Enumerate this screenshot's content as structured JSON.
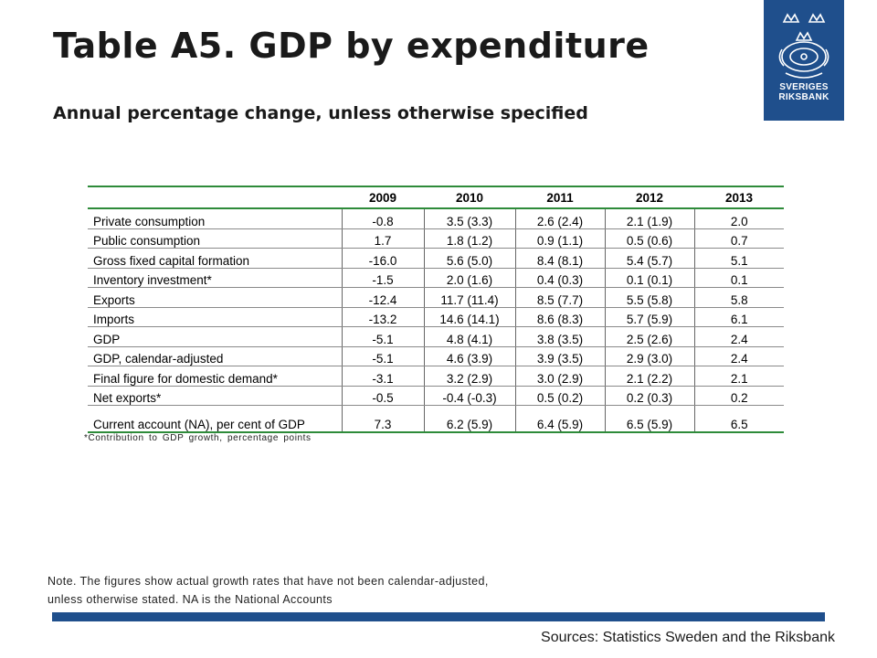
{
  "title": "Table A5. GDP by expenditure",
  "subtitle": "Annual percentage change, unless otherwise specified",
  "logo": {
    "line1": "SVERIGES",
    "line2": "RIKSBANK",
    "color": "#1f4f8c"
  },
  "table": {
    "columns": [
      "2009",
      "2010",
      "2011",
      "2012",
      "2013"
    ],
    "rows": [
      {
        "label": "Private consumption",
        "values": [
          "-0.8",
          "3.5 (3.3)",
          "2.6 (2.4)",
          "2.1 (1.9)",
          "2.0"
        ]
      },
      {
        "label": "Public consumption",
        "values": [
          "1.7",
          "1.8 (1.2)",
          "0.9 (1.1)",
          "0.5 (0.6)",
          "0.7"
        ]
      },
      {
        "label": "Gross fixed capital formation",
        "values": [
          "-16.0",
          "5.6 (5.0)",
          "8.4 (8.1)",
          "5.4 (5.7)",
          "5.1"
        ]
      },
      {
        "label": "Inventory investment*",
        "values": [
          "-1.5",
          "2.0 (1.6)",
          "0.4 (0.3)",
          "0.1 (0.1)",
          "0.1"
        ]
      },
      {
        "label": "Exports",
        "values": [
          "-12.4",
          "11.7 (11.4)",
          "8.5 (7.7)",
          "5.5 (5.8)",
          "5.8"
        ]
      },
      {
        "label": "Imports",
        "values": [
          "-13.2",
          "14.6 (14.1)",
          "8.6 (8.3)",
          "5.7 (5.9)",
          "6.1"
        ]
      },
      {
        "label": "GDP",
        "values": [
          "-5.1",
          "4.8 (4.1)",
          "3.8 (3.5)",
          "2.5 (2.6)",
          "2.4"
        ]
      },
      {
        "label": "GDP, calendar-adjusted",
        "values": [
          "-5.1",
          "4.6 (3.9)",
          "3.9 (3.5)",
          "2.9 (3.0)",
          "2.4"
        ]
      },
      {
        "label": "Final figure for domestic demand*",
        "values": [
          "-3.1",
          "3.2 (2.9)",
          "3.0 (2.9)",
          "2.1 (2.2)",
          "2.1"
        ]
      },
      {
        "label": "Net exports*",
        "values": [
          "-0.5",
          "-0.4 (-0.3)",
          "0.5 (0.2)",
          "0.2 (0.3)",
          "0.2"
        ]
      },
      {
        "label": "Current account (NA), per cent of GDP",
        "values": [
          "7.3",
          "6.2 (5.9)",
          "6.4 (5.9)",
          "6.5 (5.9)",
          "6.5"
        ]
      }
    ]
  },
  "footnote": "*Contribution to GDP growth, percentage points",
  "note_line1": "Note. The figures show actual growth rates that have not been calendar-adjusted,",
  "note_line2": "unless otherwise stated. NA is the National Accounts",
  "sources": "Sources: Statistics Sweden and the Riksbank"
}
